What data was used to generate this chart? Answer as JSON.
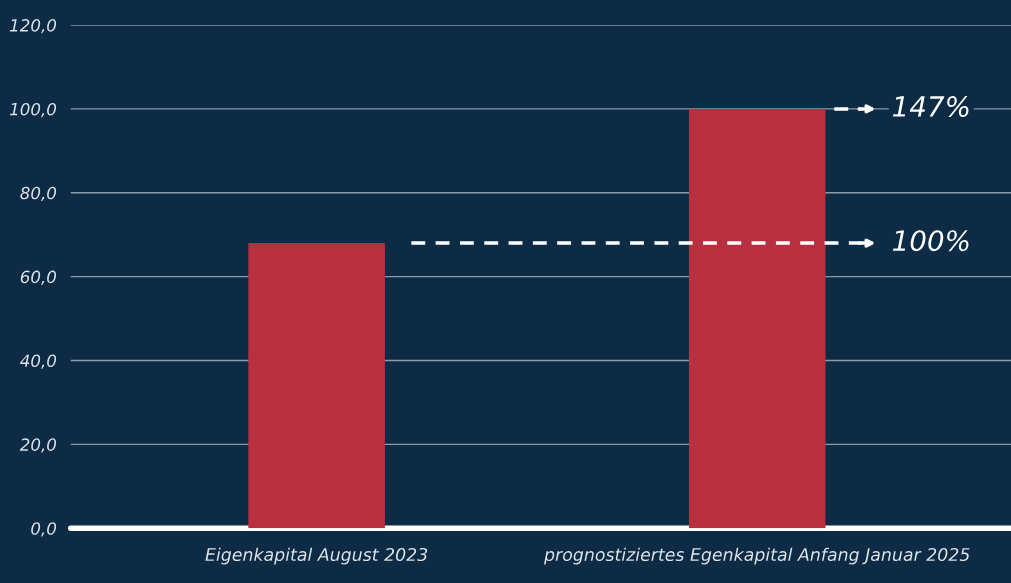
{
  "chart_data": {
    "type": "bar",
    "categories": [
      "Eigenkapital August 2023",
      "prognostiziertes Egenkapital Anfang Januar 2025"
    ],
    "values": [
      68,
      100
    ],
    "color": "#b8303f",
    "ylim": [
      0,
      120
    ],
    "yticks": [
      {
        "value": 0,
        "label": "0,0"
      },
      {
        "value": 20,
        "label": "20,0"
      },
      {
        "value": 40,
        "label": "40,0"
      },
      {
        "value": 60,
        "label": "60,0"
      },
      {
        "value": 80,
        "label": "80,0"
      },
      {
        "value": 100,
        "label": "100,0"
      },
      {
        "value": 120,
        "label": "120,0"
      }
    ],
    "grid": "y",
    "legend": false,
    "ref_lines": [
      {
        "axis": "y",
        "value": 68,
        "color": "#ffffff",
        "line_style": "dashed"
      }
    ],
    "annotations": [
      "100%",
      "147%"
    ]
  }
}
